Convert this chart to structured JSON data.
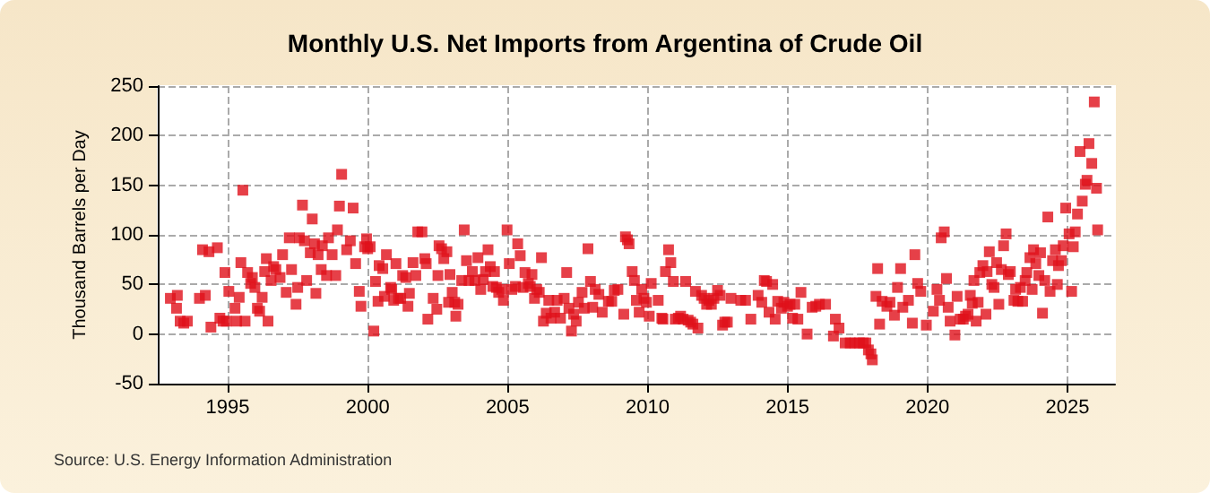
{
  "chart_data": {
    "type": "scatter",
    "title": "Monthly U.S. Net Imports from Argentina of Crude Oil",
    "ylabel": "Thousand Barrels per Day",
    "annotations": [
      "Source: U.S. Energy Information Administration"
    ],
    "marker": "square",
    "grid": true,
    "xlim": [
      1992.5,
      2026.7
    ],
    "xticks": [
      1995,
      2000,
      2005,
      2010,
      2015,
      2020,
      2025
    ],
    "ylim": [
      -50,
      250
    ],
    "yticks": [
      -50,
      0,
      50,
      100,
      150,
      200,
      250
    ],
    "series": [
      {
        "color": "#e0101a",
        "x": [
          1992.95,
          1993.17,
          1993.2,
          1993.3,
          1993.43,
          1993.56,
          1993.99,
          1994.1,
          1994.2,
          1994.33,
          1994.4,
          1994.63,
          1994.72,
          1994.83,
          1994.9,
          1994.95,
          1995.04,
          1995.26,
          1995.32,
          1995.41,
          1995.47,
          1995.54,
          1995.62,
          1995.71,
          1995.82,
          1995.88,
          1995.97,
          1996.06,
          1996.14,
          1996.23,
          1996.32,
          1996.38,
          1996.44,
          1996.55,
          1996.64,
          1996.72,
          1996.87,
          1996.96,
          1997.09,
          1997.2,
          1997.28,
          1997.44,
          1997.5,
          1997.56,
          1997.67,
          1997.74,
          1997.82,
          1997.95,
          1998.02,
          1998.1,
          1998.15,
          1998.23,
          1998.34,
          1998.38,
          1998.53,
          1998.6,
          1998.73,
          1998.86,
          1998.92,
          1998.99,
          1999.07,
          1999.25,
          1999.38,
          1999.48,
          1999.57,
          1999.7,
          1999.76,
          1999.89,
          1999.96,
          2000.0,
          2000.09,
          2000.22,
          2000.28,
          2000.37,
          2000.41,
          2000.54,
          2000.6,
          2000.67,
          2000.82,
          2000.86,
          2000.93,
          2001.01,
          2001.1,
          2001.18,
          2001.25,
          2001.36,
          2001.44,
          2001.49,
          2001.62,
          2001.72,
          2001.79,
          2001.94,
          2002.04,
          2002.09,
          2002.15,
          2002.34,
          2002.47,
          2002.51,
          2002.55,
          2002.64,
          2002.72,
          2002.83,
          2002.89,
          2002.94,
          2003.02,
          2003.11,
          2003.15,
          2003.23,
          2003.36,
          2003.45,
          2003.53,
          2003.62,
          2003.74,
          2003.83,
          2003.94,
          2004.04,
          2004.13,
          2004.21,
          2004.3,
          2004.38,
          2004.47,
          2004.53,
          2004.6,
          2004.68,
          2004.79,
          2004.85,
          2004.98,
          2005.06,
          2005.15,
          2005.28,
          2005.36,
          2005.45,
          2005.55,
          2005.62,
          2005.74,
          2005.81,
          2005.87,
          2005.96,
          2006.04,
          2006.13,
          2006.21,
          2006.28,
          2006.38,
          2006.47,
          2006.55,
          2006.68,
          2006.77,
          2006.89,
          2007.02,
          2007.11,
          2007.19,
          2007.28,
          2007.36,
          2007.45,
          2007.53,
          2007.66,
          2007.74,
          2007.87,
          2007.96,
          2008.04,
          2008.13,
          2008.26,
          2008.38,
          2008.6,
          2008.72,
          2008.81,
          2008.94,
          2009.15,
          2009.21,
          2009.28,
          2009.34,
          2009.45,
          2009.53,
          2009.6,
          2009.7,
          2009.79,
          2009.87,
          2009.96,
          2010.06,
          2010.13,
          2010.38,
          2010.51,
          2010.55,
          2010.64,
          2010.75,
          2010.83,
          2010.92,
          2010.99,
          2011.1,
          2011.18,
          2011.27,
          2011.36,
          2011.45,
          2011.54,
          2011.62,
          2011.71,
          2011.8,
          2011.93,
          2012.02,
          2012.11,
          2012.19,
          2012.28,
          2012.37,
          2012.5,
          2012.59,
          2012.68,
          2012.76,
          2012.85,
          2012.98,
          2013.33,
          2013.5,
          2013.69,
          2013.95,
          2014.08,
          2014.17,
          2014.25,
          2014.34,
          2014.47,
          2014.56,
          2014.65,
          2014.78,
          2014.87,
          2015.0,
          2015.09,
          2015.18,
          2015.26,
          2015.37,
          2015.48,
          2015.7,
          2015.88,
          2016.01,
          2016.14,
          2016.36,
          2016.64,
          2016.71,
          2016.84,
          2017.06,
          2017.24,
          2017.41,
          2017.57,
          2017.71,
          2017.8,
          2017.89,
          2017.98,
          2018.03,
          2018.16,
          2018.22,
          2018.29,
          2018.38,
          2018.55,
          2018.66,
          2018.82,
          2018.93,
          2019.04,
          2019.12,
          2019.32,
          2019.46,
          2019.55,
          2019.65,
          2019.76,
          2019.96,
          2020.21,
          2020.34,
          2020.43,
          2020.49,
          2020.6,
          2020.68,
          2020.74,
          2020.81,
          2020.98,
          2021.06,
          2021.17,
          2021.28,
          2021.36,
          2021.45,
          2021.53,
          2021.6,
          2021.66,
          2021.74,
          2021.81,
          2021.87,
          2021.98,
          2022.09,
          2022.13,
          2022.21,
          2022.3,
          2022.38,
          2022.47,
          2022.55,
          2022.64,
          2022.72,
          2022.81,
          2022.89,
          2022.96,
          2023.09,
          2023.15,
          2023.23,
          2023.32,
          2023.4,
          2023.49,
          2023.55,
          2023.66,
          2023.74,
          2023.79,
          2023.87,
          2023.98,
          2024.04,
          2024.11,
          2024.19,
          2024.3,
          2024.38,
          2024.47,
          2024.57,
          2024.64,
          2024.68,
          2024.79,
          2024.85,
          2024.94,
          2025.06,
          2025.15,
          2025.21,
          2025.28,
          2025.36,
          2025.45,
          2025.53,
          2025.64,
          2025.7,
          2025.77,
          2025.87,
          2025.96,
          2026.04,
          2026.08
        ],
        "values": [
          36,
          26,
          39,
          13,
          11,
          13,
          36,
          85,
          39,
          83,
          7,
          87,
          16,
          13,
          62,
          13,
          43,
          26,
          13,
          37,
          72,
          145,
          13,
          62,
          51,
          57,
          47,
          26,
          23,
          37,
          63,
          76,
          13,
          54,
          68,
          65,
          57,
          80,
          42,
          97,
          65,
          30,
          47,
          97,
          130,
          94,
          54,
          82,
          116,
          91,
          41,
          80,
          65,
          89,
          59,
          97,
          80,
          59,
          105,
          129,
          161,
          85,
          94,
          127,
          71,
          43,
          28,
          88,
          96,
          86,
          88,
          3,
          53,
          33,
          69,
          66,
          38,
          80,
          47,
          45,
          34,
          71,
          36,
          36,
          59,
          57,
          28,
          41,
          72,
          59,
          103,
          103,
          76,
          71,
          15,
          36,
          25,
          59,
          89,
          86,
          76,
          83,
          32,
          60,
          42,
          32,
          18,
          30,
          54,
          105,
          74,
          54,
          63,
          54,
          77,
          45,
          55,
          63,
          85,
          68,
          48,
          63,
          47,
          42,
          45,
          34,
          105,
          71,
          45,
          48,
          91,
          79,
          47,
          62,
          51,
          48,
          60,
          36,
          45,
          42,
          77,
          13,
          21,
          34,
          16,
          22,
          34,
          16,
          36,
          62,
          26,
          3,
          20,
          13,
          32,
          42,
          26,
          86,
          53,
          27,
          45,
          40,
          22,
          33,
          33,
          44,
          45,
          20,
          98,
          95,
          91,
          63,
          54,
          34,
          22,
          45,
          36,
          32,
          18,
          51,
          34,
          16,
          15,
          63,
          85,
          72,
          53,
          15,
          16,
          18,
          15,
          53,
          14,
          12,
          10,
          43,
          6,
          39,
          36,
          30,
          34,
          30,
          36,
          44,
          39,
          9,
          12,
          12,
          36,
          34,
          34,
          15,
          39,
          32,
          54,
          53,
          22,
          50,
          15,
          33,
          26,
          32,
          28,
          30,
          16,
          30,
          15,
          42,
          0,
          27,
          28,
          30,
          30,
          -2,
          15,
          6,
          -9,
          -9,
          -9,
          -9,
          -9,
          -9,
          -16,
          -20,
          -26,
          38,
          66,
          10,
          33,
          28,
          32,
          19,
          47,
          66,
          27,
          34,
          11,
          80,
          51,
          43,
          9,
          23,
          45,
          34,
          97,
          103,
          56,
          27,
          13,
          -1,
          38,
          15,
          15,
          18,
          20,
          39,
          31,
          54,
          13,
          32,
          62,
          69,
          20,
          63,
          83,
          50,
          47,
          72,
          30,
          65,
          89,
          101,
          60,
          63,
          34,
          45,
          33,
          47,
          33,
          54,
          62,
          77,
          45,
          85,
          71,
          59,
          82,
          21,
          54,
          118,
          43,
          74,
          85,
          50,
          69,
          74,
          89,
          127,
          101,
          43,
          88,
          103,
          121,
          184,
          134,
          151,
          155,
          192,
          172,
          234,
          147,
          105
        ]
      }
    ]
  }
}
